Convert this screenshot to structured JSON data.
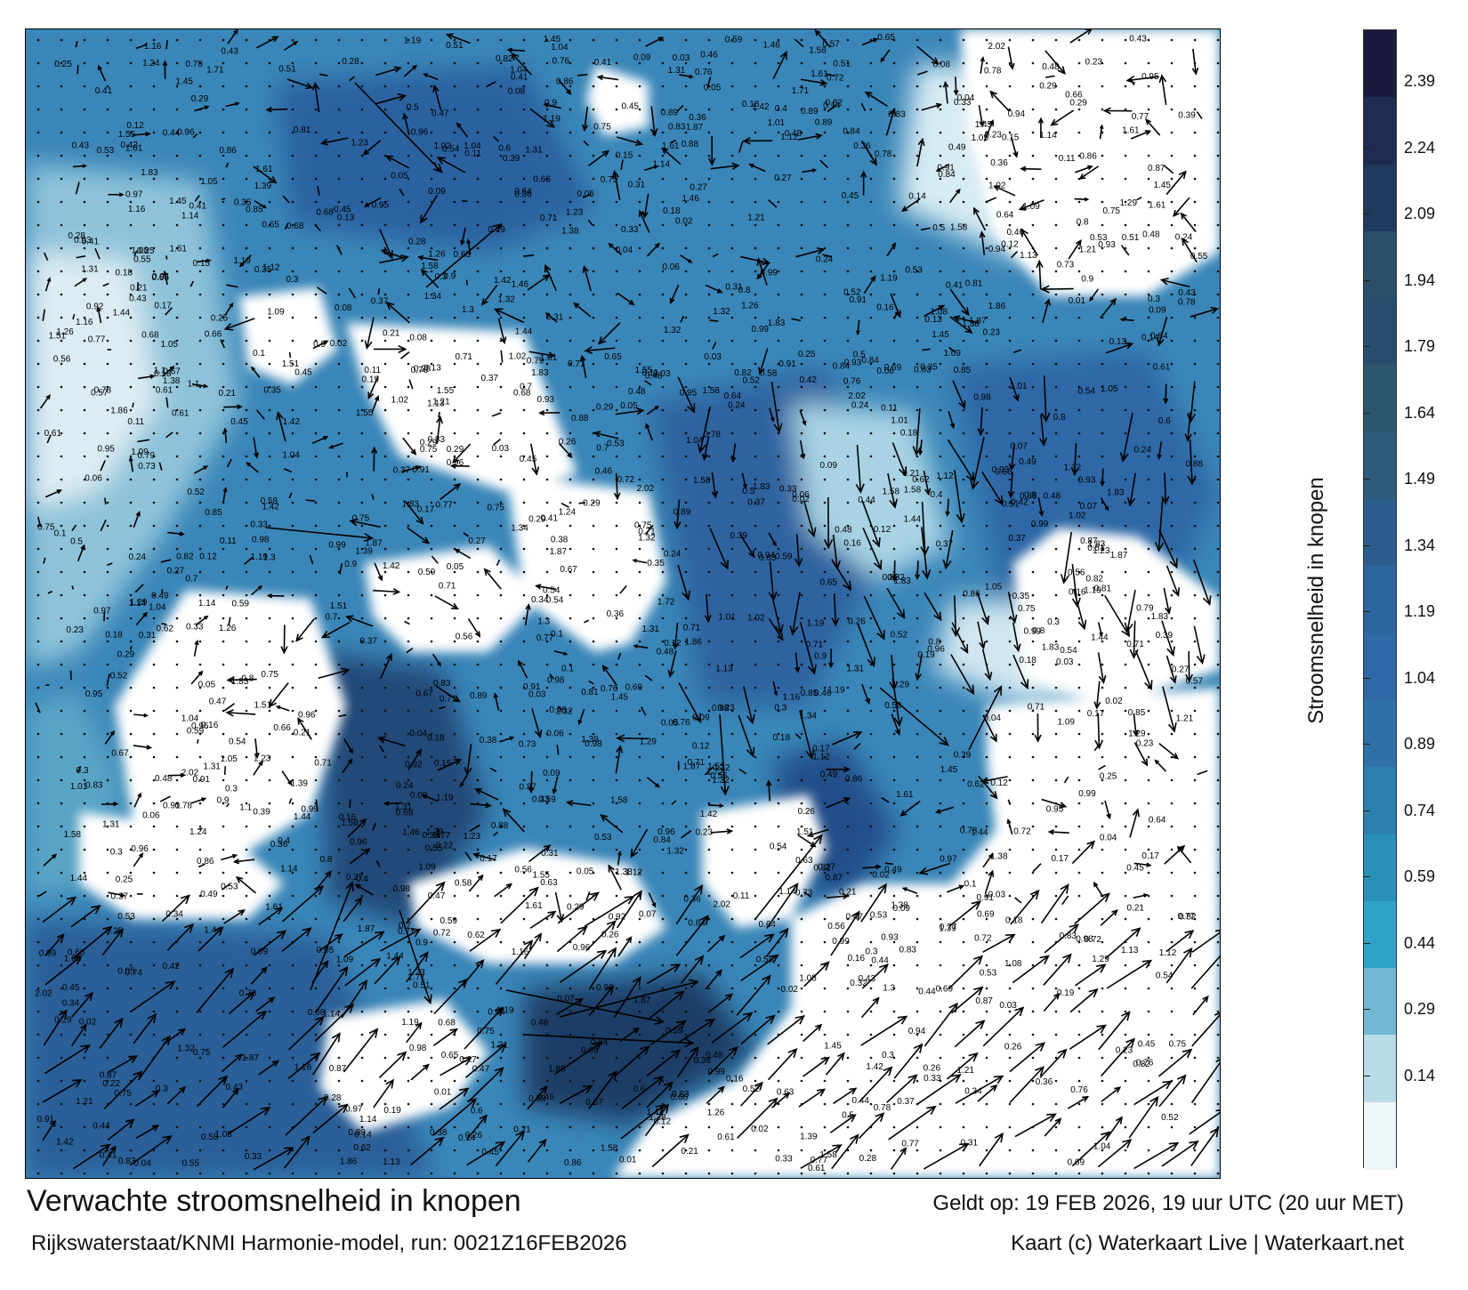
{
  "map": {
    "kind": "ocean current speed forecast",
    "region_visible": "North Sea / Wadden",
    "land_color": "#ffffff",
    "calm_color": "#eef6fa",
    "fast_color": "#1a2a55",
    "arrow_color": "#000000"
  },
  "colorbar": {
    "label": "Stroomsnelheid in knopen",
    "ticks": [
      "2.39",
      "2.24",
      "2.09",
      "1.94",
      "1.79",
      "1.64",
      "1.49",
      "1.34",
      "1.19",
      "1.04",
      "0.89",
      "0.74",
      "0.59",
      "0.44",
      "0.29",
      "0.14"
    ],
    "colors": [
      "#1a1a3f",
      "#1e2b52",
      "#20395f",
      "#2a4f6a",
      "#284e6f",
      "#2c5670",
      "#2e5a7c",
      "#2b5d8c",
      "#2d65a0",
      "#2f67a8",
      "#3070aa",
      "#2c80ae",
      "#2991b8",
      "#2ea3c8",
      "#6fb9d3",
      "#b9dce8",
      "#eef6fa"
    ]
  },
  "footer": {
    "title": "Verwachte stroomsnelheid in knopen",
    "subtitle": "Rijkswaterstaat/KNMI Harmonie-model, run: 0021Z16FEB2026",
    "valid": "Geldt op: 19 FEB 2026, 19 uur UTC (20 uur MET)",
    "credit": "Kaart (c) Waterkaart Live | Waterkaart.net"
  },
  "sample_labels": [
    "0.48",
    "0.32",
    "0.39",
    "0.43",
    "0.54",
    "0.64",
    "0.35",
    "0.38",
    "0.36",
    "0.1",
    "0.07",
    "0.01",
    "0.47",
    "0.33",
    "0.31",
    "0.28",
    "0.46",
    "0.51",
    "0.44",
    "0.45",
    "0.53",
    "0.56",
    "0.52",
    "0.5",
    "0.17",
    "0.15",
    "0.16",
    "0.13",
    "0.09",
    "0.02",
    "0.06",
    "0.12",
    "0.19",
    "0.27",
    "0.21",
    "0.74",
    "0.79",
    "0.81",
    "0.85",
    "0.92",
    "1.08",
    "1.21",
    "0.97",
    "0.89",
    "0.66",
    "0.71",
    "1.44",
    "1.61",
    "1.51",
    "1.86",
    "1.42",
    "1.38",
    "1.26",
    "1.34",
    "1.16",
    "1.29",
    "1.71",
    "2.02",
    "1.87",
    "1.83",
    "1.46",
    "1.72",
    "1.58",
    "1.55",
    "1.39",
    "1.23",
    "1.04",
    "1.14",
    "0.67",
    "0.73",
    "0.78",
    "0.82",
    "0.86",
    "0.91",
    "0.93",
    "0.96",
    "0.99",
    "1.01",
    "0.87",
    "0.04",
    "0.03",
    "0.05",
    "0.08",
    "0.11",
    "0.14",
    "0.18",
    "0.22",
    "0.23",
    "0.24",
    "0.25",
    "0.26",
    "0.29",
    "0.3",
    "0.34",
    "0.37",
    "0.4",
    "0.41",
    "0.42",
    "0.49",
    "0.55",
    "0.57",
    "0.58",
    "0.59",
    "0.6",
    "0.61",
    "0.62",
    "0.63",
    "0.65",
    "0.68",
    "0.69",
    "0.7",
    "0.72",
    "0.75",
    "0.76",
    "0.77",
    "0.8",
    "0.83",
    "0.84",
    "0.88",
    "0.9",
    "0.94",
    "0.95",
    "0.98",
    "1.02",
    "1.05",
    "1.09",
    "1.1",
    "1.12",
    "1.13",
    "1.19",
    "1.24",
    "1.3",
    "1.31",
    "1.32",
    "1.45"
  ]
}
